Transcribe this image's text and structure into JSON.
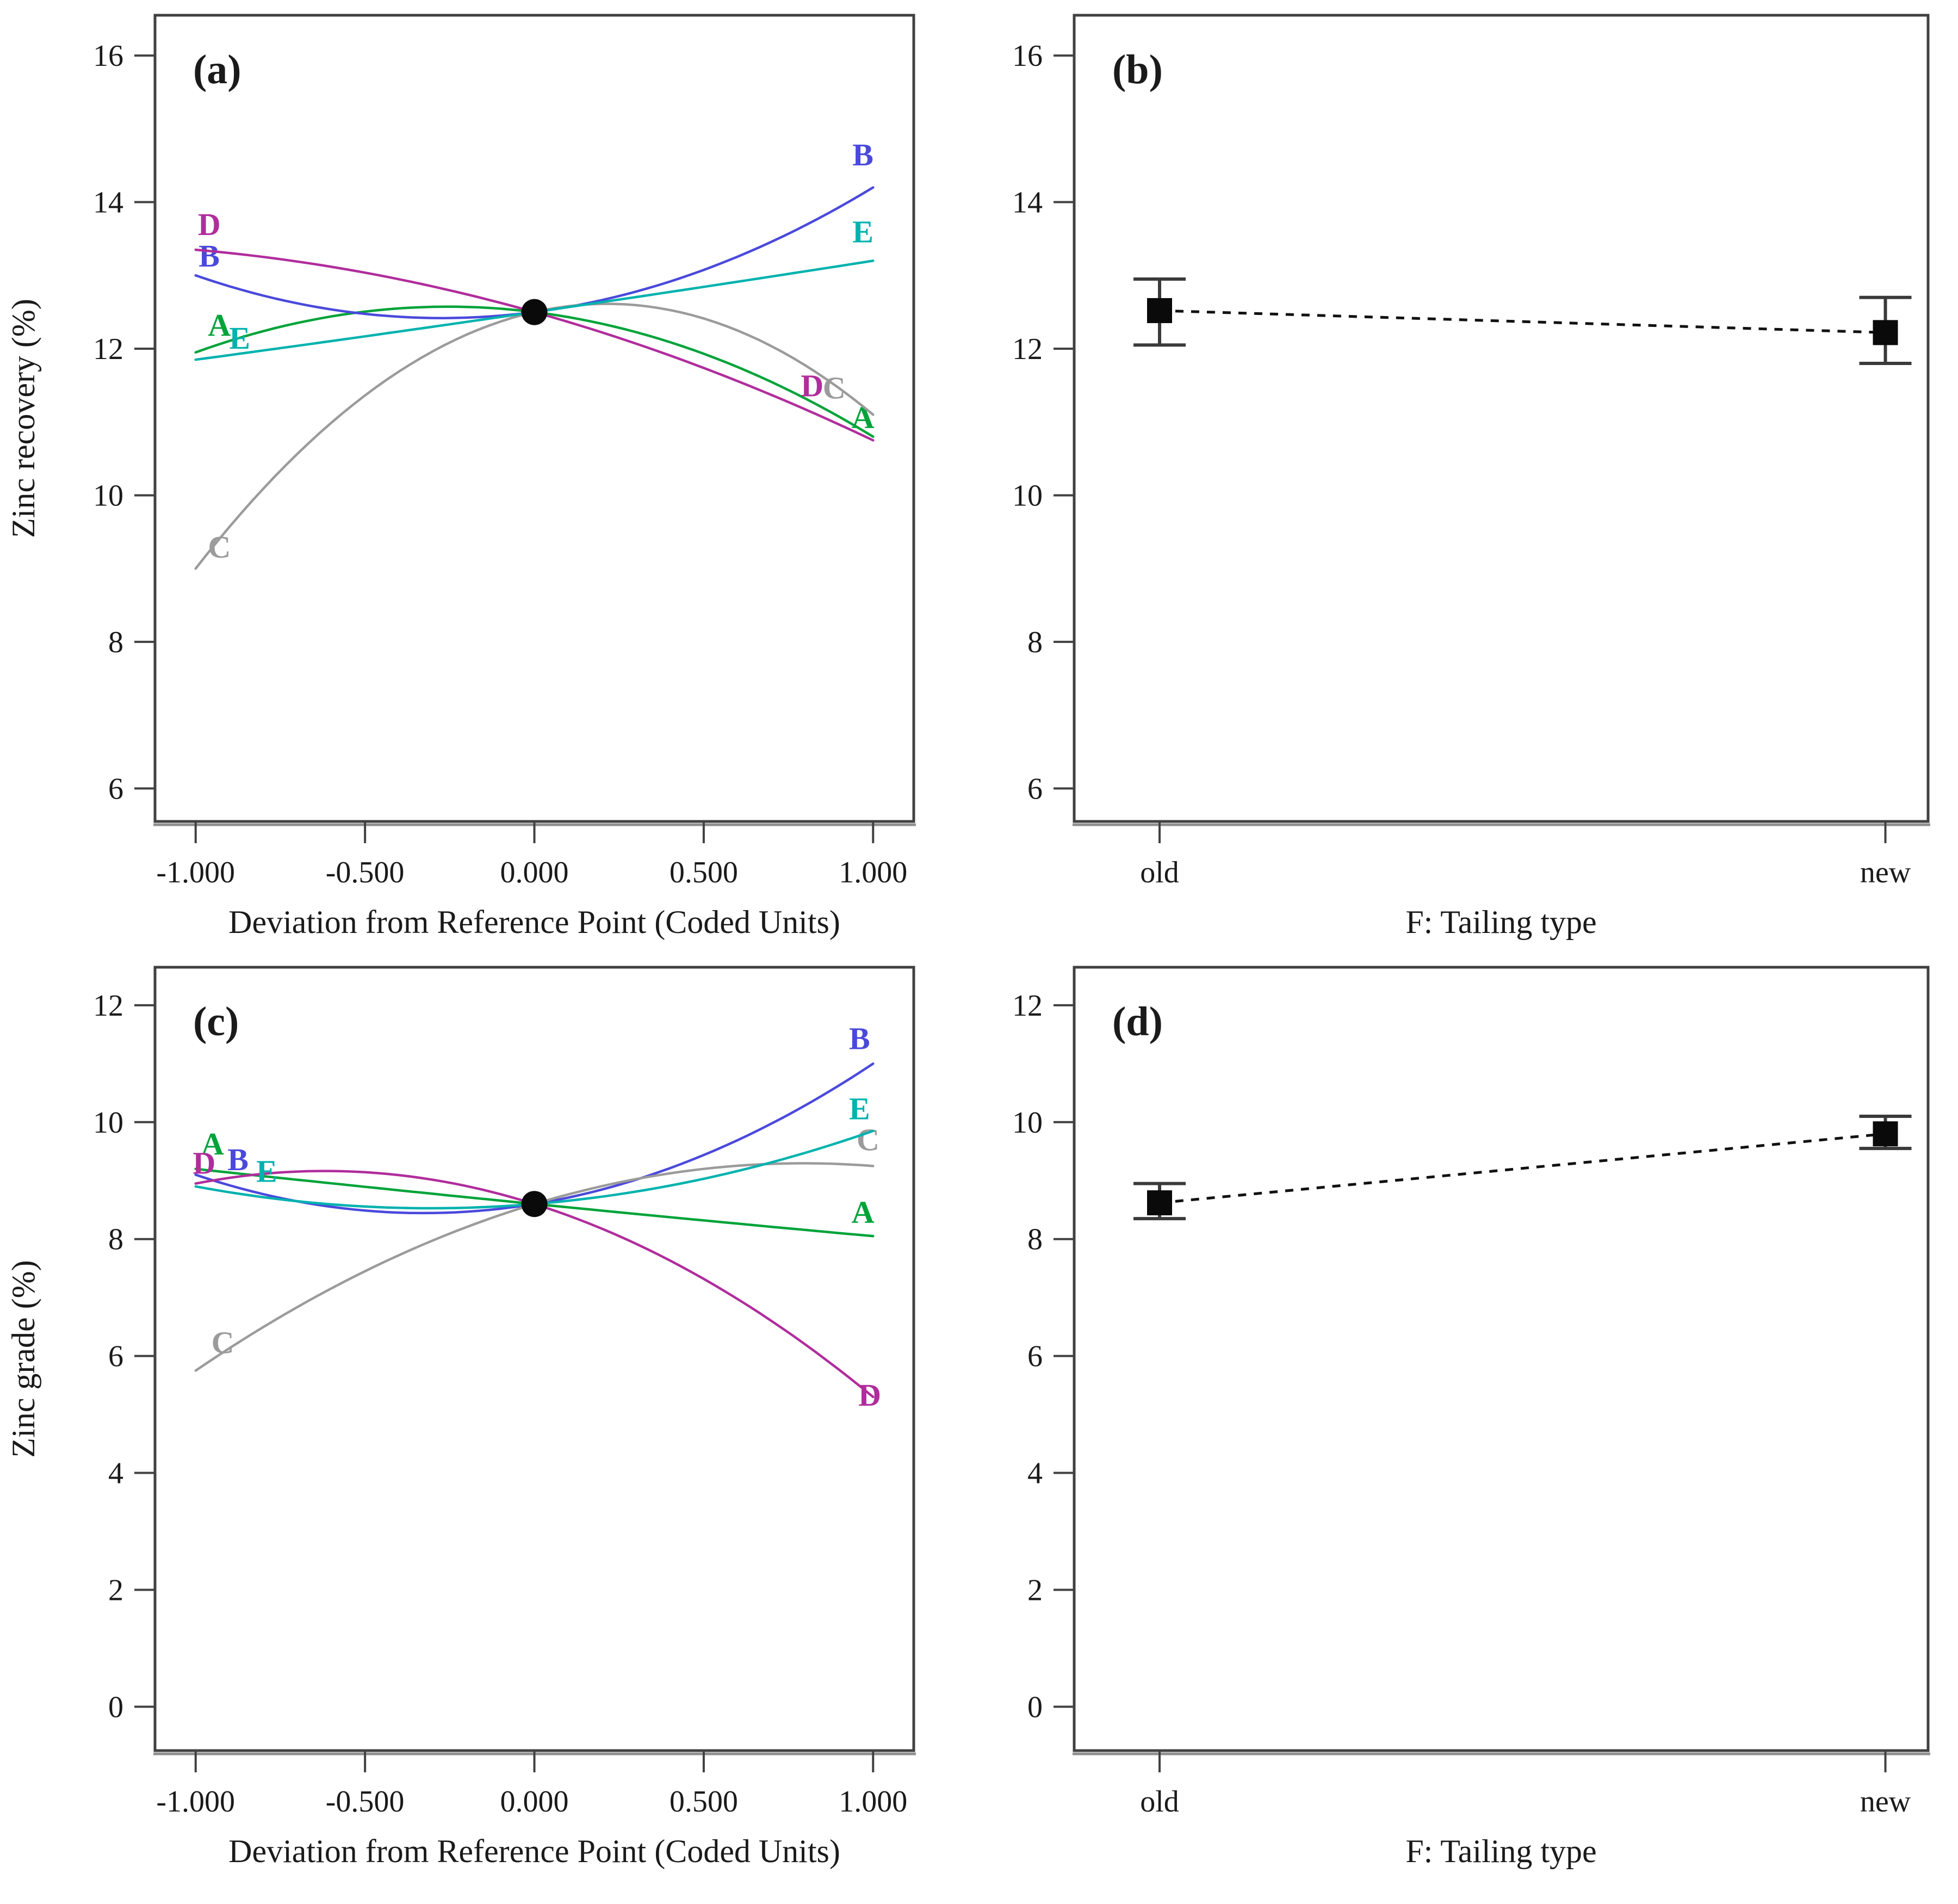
{
  "figure": {
    "description": "Four-panel perturbation and one-factor effect plots for zinc flotation response surface model",
    "background": "#ffffff",
    "text_color": "#1a1a1a",
    "axis_color": "#414141",
    "shadow_color": "#8f8f8f"
  },
  "chart_data": [
    {
      "id": "a",
      "panel_label": "(a)",
      "type": "line",
      "kind": "perturbation",
      "xlabel": "Deviation from Reference Point (Coded Units)",
      "ylabel": "Zinc recovery (%)",
      "xlim": [
        -1.12,
        1.12
      ],
      "ylim": [
        5.55,
        16.55
      ],
      "x_ticks": [
        -1.0,
        -0.5,
        0.0,
        0.5,
        1.0
      ],
      "x_tick_labels": [
        "-1.000",
        "-0.500",
        "0.000",
        "0.500",
        "1.000"
      ],
      "y_ticks": [
        6,
        8,
        10,
        12,
        14,
        16
      ],
      "grid": false,
      "center_point": {
        "x": 0.0,
        "y": 12.5
      },
      "series": [
        {
          "name": "A",
          "color": "#00a339",
          "x": [
            -1,
            0,
            1
          ],
          "values": [
            11.95,
            12.5,
            10.8
          ],
          "labels": [
            {
              "x": -0.93,
              "y": 12.18
            },
            {
              "x": 0.97,
              "y": 10.92
            }
          ]
        },
        {
          "name": "B",
          "color": "#4a49dc",
          "x": [
            -1,
            0,
            1
          ],
          "values": [
            13.0,
            12.5,
            14.2
          ],
          "labels": [
            {
              "x": -0.96,
              "y": 13.12
            },
            {
              "x": 0.97,
              "y": 14.5
            }
          ]
        },
        {
          "name": "C",
          "color": "#9b9b9b",
          "x": [
            -1,
            0,
            1
          ],
          "values": [
            9.0,
            12.5,
            11.1
          ],
          "labels": [
            {
              "x": -0.93,
              "y": 9.15
            },
            {
              "x": 0.885,
              "y": 11.32
            }
          ]
        },
        {
          "name": "D",
          "color": "#b02d9c",
          "x": [
            -1,
            0,
            1
          ],
          "values": [
            13.35,
            12.5,
            10.75
          ],
          "labels": [
            {
              "x": -0.96,
              "y": 13.55
            },
            {
              "x": 0.82,
              "y": 11.35
            }
          ]
        },
        {
          "name": "E",
          "color": "#00b2ae",
          "x": [
            -1,
            0,
            1
          ],
          "values": [
            11.85,
            12.5,
            13.2
          ],
          "labels": [
            {
              "x": -0.87,
              "y": 12.0
            },
            {
              "x": 0.97,
              "y": 13.45
            }
          ]
        }
      ]
    },
    {
      "id": "b",
      "panel_label": "(b)",
      "type": "scatter",
      "kind": "two-level",
      "xlabel": "F: Tailing type",
      "ylabel": "Zinc recovery (%)",
      "ylim": [
        5.55,
        16.55
      ],
      "y_ticks": [
        6,
        8,
        10,
        12,
        14,
        16
      ],
      "grid": false,
      "categories": [
        "old",
        "new"
      ],
      "means": [
        12.52,
        12.22
      ],
      "error_low": [
        12.05,
        11.8
      ],
      "error_high": [
        12.95,
        12.7
      ],
      "line_style": "dashed"
    },
    {
      "id": "c",
      "panel_label": "(c)",
      "type": "line",
      "kind": "perturbation",
      "xlabel": "Deviation from Reference Point (Coded Units)",
      "ylabel": "Zinc grade (%)",
      "xlim": [
        -1.12,
        1.12
      ],
      "ylim": [
        -0.75,
        12.65
      ],
      "x_ticks": [
        -1.0,
        -0.5,
        0.0,
        0.5,
        1.0
      ],
      "x_tick_labels": [
        "-1.000",
        "-0.500",
        "0.000",
        "0.500",
        "1.000"
      ],
      "y_ticks": [
        0,
        2,
        4,
        6,
        8,
        10,
        12
      ],
      "grid": false,
      "center_point": {
        "x": 0.0,
        "y": 8.6
      },
      "series": [
        {
          "name": "A",
          "color": "#00a339",
          "x": [
            -1,
            0,
            1
          ],
          "values": [
            9.2,
            8.6,
            8.05
          ],
          "labels": [
            {
              "x": -0.95,
              "y": 9.45
            },
            {
              "x": 0.97,
              "y": 8.28
            }
          ]
        },
        {
          "name": "B",
          "color": "#4a49dc",
          "x": [
            -1,
            0,
            1
          ],
          "values": [
            9.1,
            8.6,
            11.0
          ],
          "labels": [
            {
              "x": -0.875,
              "y": 9.18
            },
            {
              "x": 0.96,
              "y": 11.25
            }
          ]
        },
        {
          "name": "C",
          "color": "#9b9b9b",
          "x": [
            -1,
            0,
            1
          ],
          "values": [
            5.75,
            8.6,
            9.25
          ],
          "labels": [
            {
              "x": -0.92,
              "y": 6.05
            },
            {
              "x": 0.985,
              "y": 9.52
            }
          ]
        },
        {
          "name": "D",
          "color": "#b02d9c",
          "x": [
            -1,
            0,
            1
          ],
          "values": [
            8.95,
            8.6,
            5.3
          ],
          "labels": [
            {
              "x": -0.975,
              "y": 9.12
            },
            {
              "x": 0.99,
              "y": 5.15
            }
          ]
        },
        {
          "name": "E",
          "color": "#00b2ae",
          "x": [
            -1,
            0,
            1
          ],
          "values": [
            8.9,
            8.6,
            9.85
          ],
          "labels": [
            {
              "x": -0.79,
              "y": 8.98
            },
            {
              "x": 0.96,
              "y": 10.05
            }
          ]
        }
      ]
    },
    {
      "id": "d",
      "panel_label": "(d)",
      "type": "scatter",
      "kind": "two-level",
      "xlabel": "F: Tailing type",
      "ylabel": "Zinc grade (%)",
      "ylim": [
        -0.75,
        12.65
      ],
      "y_ticks": [
        0,
        2,
        4,
        6,
        8,
        10,
        12
      ],
      "grid": false,
      "categories": [
        "old",
        "new"
      ],
      "means": [
        8.62,
        9.8
      ],
      "error_low": [
        8.35,
        9.55
      ],
      "error_high": [
        8.95,
        10.1
      ],
      "line_style": "dashed"
    }
  ]
}
